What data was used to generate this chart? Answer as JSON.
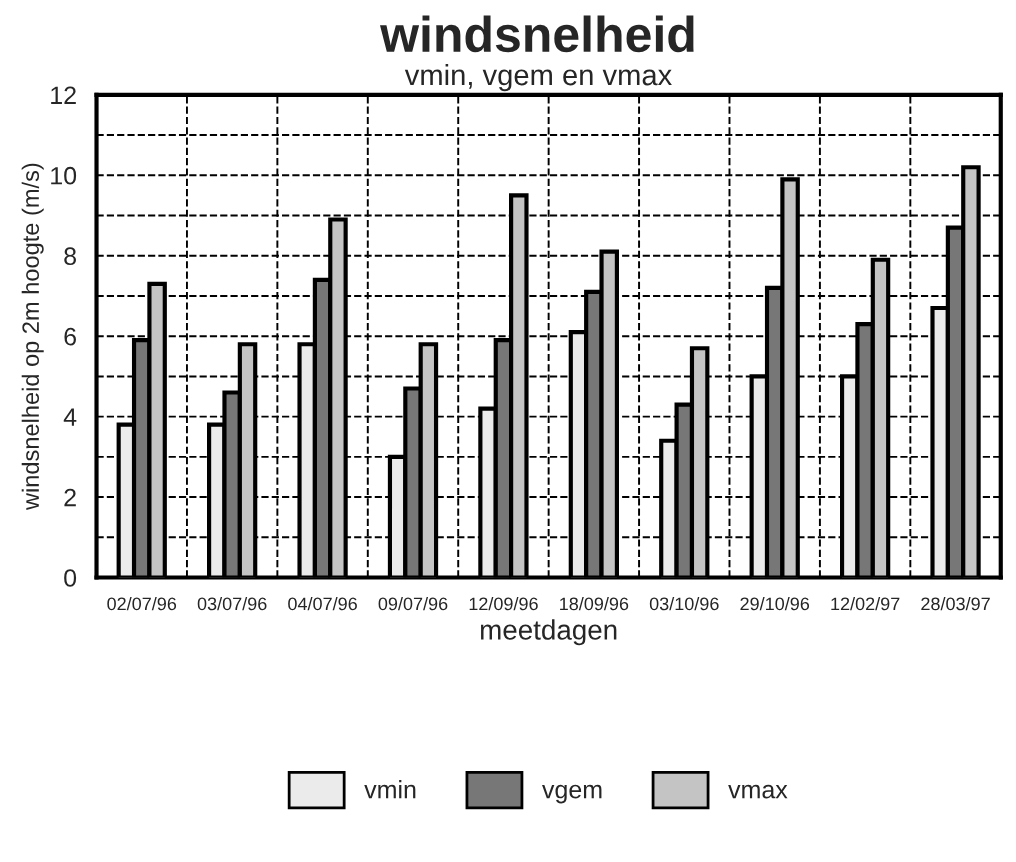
{
  "chart_data": {
    "type": "bar",
    "title": "windsnelheid",
    "subtitle": "vmin, vgem en vmax",
    "xlabel": "meetdagen",
    "ylabel": "windsnelheid op 2m hoogte (m/s)",
    "categories": [
      "02/07/96",
      "03/07/96",
      "04/07/96",
      "09/07/96",
      "12/09/96",
      "18/09/96",
      "03/10/96",
      "29/10/96",
      "12/02/97",
      "28/03/97"
    ],
    "series": [
      {
        "name": "vmin",
        "color": "#ebebeb",
        "values": [
          3.8,
          3.8,
          5.8,
          3.0,
          4.2,
          6.1,
          3.4,
          5.0,
          5.0,
          6.7
        ]
      },
      {
        "name": "vgem",
        "color": "#777777",
        "values": [
          5.9,
          4.6,
          7.4,
          4.7,
          5.9,
          7.1,
          4.3,
          7.2,
          6.3,
          8.7
        ]
      },
      {
        "name": "vmax",
        "color": "#c4c4c4",
        "values": [
          7.3,
          5.8,
          8.9,
          5.8,
          9.5,
          8.1,
          5.7,
          9.9,
          7.9,
          10.2
        ]
      }
    ],
    "ylim": [
      0,
      12
    ],
    "yticks": [
      0,
      2,
      4,
      6,
      8,
      10,
      12
    ],
    "grid": true,
    "legend": "bottom"
  }
}
